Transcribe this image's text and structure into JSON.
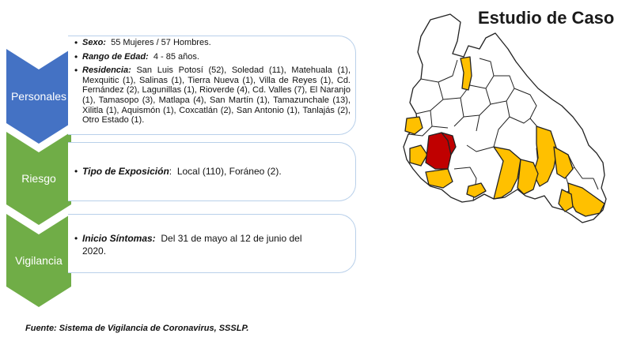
{
  "title": "Estudio de Caso",
  "colors": {
    "personales": "#4472c4",
    "riesgo": "#70ad47",
    "vigilancia": "#70ad47",
    "case_municipality": "#ffc000",
    "main_municipality": "#c00000"
  },
  "sections": {
    "personales": {
      "label": "Personales",
      "items": [
        {
          "label": "Sexo:",
          "value": "55 Mujeres / 57 Hombres."
        },
        {
          "label": "Rango de Edad:",
          "value": "4 - 85 años."
        },
        {
          "label": "Residencia:",
          "value": "San Luis Potosí (52), Soledad (11), Matehuala (1), Mexquitic (1), Salinas (1), Tierra Nueva (1), Villa de Reyes (1), Cd. Fernández (2), Lagunillas (1), Rioverde (4), Cd. Valles (7), El Naranjo (1), Tamasopo (3), Matlapa (4), San Martín (1), Tamazunchale (13), Xilitla (1), Aquismón (1), Coxcatlán (2), San Antonio (1), Tanlajás (2), Otro Estado (1)."
        }
      ]
    },
    "riesgo": {
      "label": "Riesgo",
      "items": [
        {
          "label": "Tipo de Exposición",
          "value": "Local (110), Foráneo (2)."
        }
      ]
    },
    "vigilancia": {
      "label": "Vigilancia",
      "items": [
        {
          "label": "Inicio Síntomas:",
          "value": "Del 31 de mayo al 12 de junio del 2020."
        }
      ]
    }
  },
  "source": "Fuente: Sistema de Vigilancia de Coronavirus, SSSLP."
}
